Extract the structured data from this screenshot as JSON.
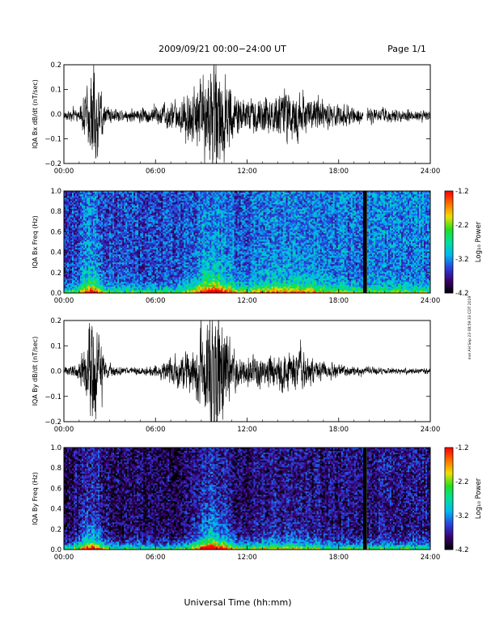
{
  "header": {
    "date_range": "2009/09/21   00:00−24:00 UT",
    "page": "Page 1/1"
  },
  "x_axis": {
    "label": "Universal Time (hh:mm)",
    "ticks": [
      "00:00",
      "06:00",
      "12:00",
      "18:00",
      "24:00"
    ],
    "tick_values_hours": [
      0,
      6,
      12,
      18,
      24
    ]
  },
  "side_note": "mel AH Sep 23 08:59:33 CDT 2019",
  "colorbar": {
    "title": "Log₁₀ Power",
    "ticks": [
      "-1.2",
      "-2.2",
      "-3.2",
      "-4.2"
    ],
    "range": [
      -4.2,
      -1.2
    ],
    "palette": [
      "#000000",
      "#3a0070",
      "#2a40e0",
      "#00b8f0",
      "#00e0a0",
      "#20e020",
      "#f0e000",
      "#ff7000",
      "#ff0000"
    ]
  },
  "chart_data": [
    {
      "type": "line",
      "ylabel": "IQA Bx dB/dt (nT/sec)",
      "ylim": [
        -0.2,
        0.2
      ],
      "y_ticks": [
        "0.2",
        "0.1",
        "0.0",
        "−0.1",
        "−0.2"
      ],
      "y_tick_values": [
        0.2,
        0.1,
        0.0,
        -0.1,
        -0.2
      ],
      "xlim_hours": [
        0,
        24
      ],
      "line_color": "#000000",
      "envelope": [
        {
          "t": 0.0,
          "amp": 0.018
        },
        {
          "t": 1.0,
          "amp": 0.03
        },
        {
          "t": 1.4,
          "amp": 0.12
        },
        {
          "t": 1.9,
          "amp": 0.26
        },
        {
          "t": 2.3,
          "amp": 0.15
        },
        {
          "t": 2.8,
          "amp": 0.04
        },
        {
          "t": 4.0,
          "amp": 0.03
        },
        {
          "t": 6.0,
          "amp": 0.045
        },
        {
          "t": 7.2,
          "amp": 0.07
        },
        {
          "t": 8.2,
          "amp": 0.12
        },
        {
          "t": 8.8,
          "amp": 0.18
        },
        {
          "t": 9.5,
          "amp": 0.26
        },
        {
          "t": 10.1,
          "amp": 0.3
        },
        {
          "t": 10.8,
          "amp": 0.16
        },
        {
          "t": 11.5,
          "amp": 0.09
        },
        {
          "t": 12.5,
          "amp": 0.08
        },
        {
          "t": 13.5,
          "amp": 0.1
        },
        {
          "t": 14.5,
          "amp": 0.12
        },
        {
          "t": 15.2,
          "amp": 0.14
        },
        {
          "t": 16.0,
          "amp": 0.09
        },
        {
          "t": 17.0,
          "amp": 0.07
        },
        {
          "t": 18.0,
          "amp": 0.06
        },
        {
          "t": 19.0,
          "amp": 0.04
        },
        {
          "t": 20.5,
          "amp": 0.035
        },
        {
          "t": 22.0,
          "amp": 0.03
        },
        {
          "t": 24.0,
          "amp": 0.025
        }
      ],
      "gaps_hours": [
        [
          19.6,
          19.85
        ]
      ],
      "offset": -0.005
    },
    {
      "type": "heatmap",
      "ylabel": "IQA Bx Freq (Hz)",
      "ylim": [
        0.0,
        1.0
      ],
      "y_ticks": [
        "1.0",
        "0.8",
        "0.6",
        "0.4",
        "0.2",
        "0.0"
      ],
      "y_tick_values": [
        1.0,
        0.8,
        0.6,
        0.4,
        0.2,
        0.0
      ],
      "xlim_hours": [
        0,
        24
      ],
      "colorbar_range": [
        -4.2,
        -1.2
      ],
      "base_power": -3.5,
      "low_freq_boost": 1.3,
      "activity_hours": [
        {
          "t": 1.8,
          "strength": 0.8,
          "width": 0.7
        },
        {
          "t": 9.7,
          "strength": 1.0,
          "width": 1.2
        },
        {
          "t": 14.5,
          "strength": 0.5,
          "width": 3.0
        }
      ],
      "late_noise_rise": 0.4,
      "gaps_hours": [
        [
          19.6,
          19.85
        ]
      ]
    },
    {
      "type": "line",
      "ylabel": "IQA By dB/dt (nT/sec)",
      "ylim": [
        -0.2,
        0.2
      ],
      "y_ticks": [
        "0.2",
        "0.1",
        "0.0",
        "−0.1",
        "−0.2"
      ],
      "y_tick_values": [
        0.2,
        0.1,
        0.0,
        -0.1,
        -0.2
      ],
      "xlim_hours": [
        0,
        24
      ],
      "line_color": "#000000",
      "envelope": [
        {
          "t": 0.0,
          "amp": 0.02
        },
        {
          "t": 1.0,
          "amp": 0.04
        },
        {
          "t": 1.5,
          "amp": 0.18
        },
        {
          "t": 1.9,
          "amp": 0.3
        },
        {
          "t": 2.3,
          "amp": 0.16
        },
        {
          "t": 2.8,
          "amp": 0.04
        },
        {
          "t": 4.0,
          "amp": 0.015
        },
        {
          "t": 6.0,
          "amp": 0.025
        },
        {
          "t": 7.0,
          "amp": 0.06
        },
        {
          "t": 8.0,
          "amp": 0.09
        },
        {
          "t": 8.8,
          "amp": 0.16
        },
        {
          "t": 9.6,
          "amp": 0.3
        },
        {
          "t": 10.2,
          "amp": 0.3
        },
        {
          "t": 10.8,
          "amp": 0.13
        },
        {
          "t": 11.5,
          "amp": 0.08
        },
        {
          "t": 12.5,
          "amp": 0.07
        },
        {
          "t": 13.5,
          "amp": 0.08
        },
        {
          "t": 14.5,
          "amp": 0.1
        },
        {
          "t": 15.5,
          "amp": 0.09
        },
        {
          "t": 16.5,
          "amp": 0.06
        },
        {
          "t": 17.5,
          "amp": 0.04
        },
        {
          "t": 19.0,
          "amp": 0.02
        },
        {
          "t": 21.0,
          "amp": 0.015
        },
        {
          "t": 24.0,
          "amp": 0.012
        }
      ],
      "gaps_hours": [],
      "offset": 0.0
    },
    {
      "type": "heatmap",
      "ylabel": "IQA By Freq (Hz)",
      "ylim": [
        0.0,
        1.0
      ],
      "y_ticks": [
        "1.0",
        "0.8",
        "0.6",
        "0.4",
        "0.2",
        "0.0"
      ],
      "y_tick_values": [
        1.0,
        0.8,
        0.6,
        0.4,
        0.2,
        0.0
      ],
      "xlim_hours": [
        0,
        24
      ],
      "colorbar_range": [
        -4.2,
        -1.2
      ],
      "base_power": -3.9,
      "low_freq_boost": 1.6,
      "activity_hours": [
        {
          "t": 1.8,
          "strength": 0.9,
          "width": 0.8
        },
        {
          "t": 9.7,
          "strength": 1.1,
          "width": 1.2
        },
        {
          "t": 14.0,
          "strength": 0.3,
          "width": 3.0
        }
      ],
      "late_noise_rise": 0.2,
      "gaps_hours": [
        [
          19.6,
          19.85
        ]
      ]
    }
  ]
}
